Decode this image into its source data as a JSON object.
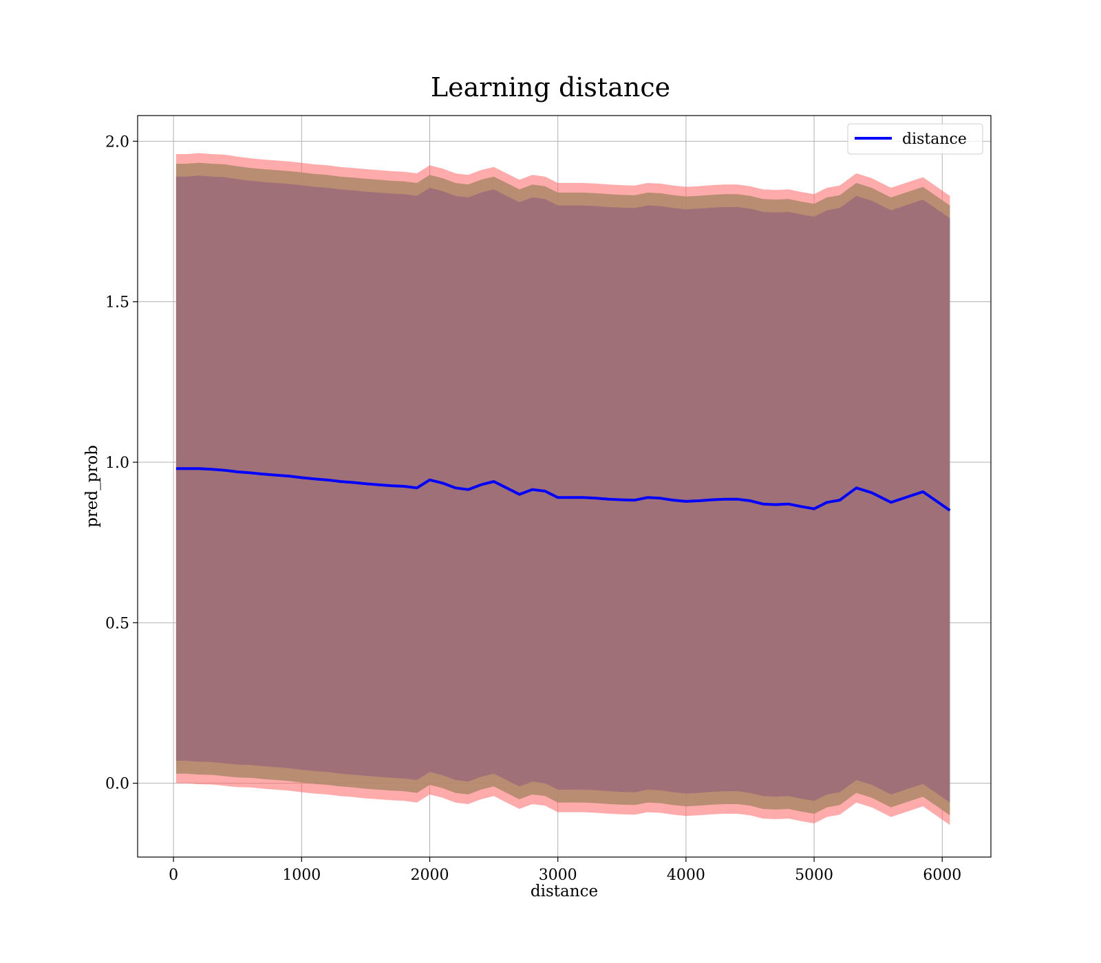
{
  "chart_data": {
    "type": "line",
    "title": "Learning distance",
    "xlabel": "distance",
    "ylabel": "pred_prob",
    "xlim": [
      -280,
      6380
    ],
    "ylim": [
      -0.23,
      2.08
    ],
    "xticks": [
      0,
      1000,
      2000,
      3000,
      4000,
      5000,
      6000
    ],
    "yticks": [
      0.0,
      0.5,
      1.0,
      1.5,
      2.0
    ],
    "grid": true,
    "legend": {
      "position": "top-right",
      "entries": [
        "distance"
      ]
    },
    "colors": {
      "line": "#0000ff",
      "band_outer": "#ff6666",
      "band_middle": "#b08a6c",
      "band_inner": "#a07078"
    },
    "series": [
      {
        "name": "distance",
        "x": [
          20,
          100,
          200,
          300,
          400,
          500,
          600,
          700,
          800,
          900,
          1000,
          1100,
          1200,
          1300,
          1400,
          1500,
          1600,
          1700,
          1800,
          1900,
          2000,
          2100,
          2200,
          2300,
          2400,
          2500,
          2600,
          2700,
          2800,
          2900,
          3000,
          3100,
          3200,
          3300,
          3400,
          3500,
          3600,
          3700,
          3800,
          3900,
          4000,
          4100,
          4200,
          4300,
          4400,
          4500,
          4600,
          4700,
          4800,
          4900,
          5000,
          5100,
          5200,
          5330,
          5450,
          5600,
          5850,
          6060
        ],
        "y": [
          0.98,
          0.98,
          0.98,
          0.978,
          0.975,
          0.97,
          0.967,
          0.963,
          0.96,
          0.957,
          0.952,
          0.948,
          0.945,
          0.94,
          0.937,
          0.933,
          0.93,
          0.927,
          0.925,
          0.92,
          0.945,
          0.935,
          0.92,
          0.915,
          0.93,
          0.94,
          0.92,
          0.9,
          0.915,
          0.91,
          0.89,
          0.89,
          0.89,
          0.888,
          0.885,
          0.883,
          0.882,
          0.89,
          0.888,
          0.882,
          0.878,
          0.88,
          0.883,
          0.885,
          0.885,
          0.88,
          0.87,
          0.868,
          0.87,
          0.862,
          0.855,
          0.875,
          0.882,
          0.92,
          0.905,
          0.875,
          0.908,
          0.85
        ],
        "band_outer_upper": [
          1.96,
          1.96,
          1.963,
          1.96,
          1.958,
          1.952,
          1.947,
          1.943,
          1.94,
          1.937,
          1.933,
          1.928,
          1.925,
          1.92,
          1.917,
          1.913,
          1.91,
          1.907,
          1.905,
          1.9,
          1.925,
          1.915,
          1.9,
          1.895,
          1.91,
          1.92,
          1.9,
          1.88,
          1.895,
          1.89,
          1.87,
          1.87,
          1.87,
          1.868,
          1.865,
          1.863,
          1.862,
          1.87,
          1.868,
          1.862,
          1.858,
          1.86,
          1.863,
          1.865,
          1.865,
          1.86,
          1.85,
          1.848,
          1.85,
          1.842,
          1.835,
          1.855,
          1.862,
          1.9,
          1.885,
          1.855,
          1.888,
          1.83
        ],
        "band_outer_lower": [
          0.0,
          0.0,
          -0.003,
          -0.004,
          -0.008,
          -0.012,
          -0.013,
          -0.017,
          -0.02,
          -0.023,
          -0.028,
          -0.032,
          -0.035,
          -0.04,
          -0.043,
          -0.047,
          -0.05,
          -0.053,
          -0.055,
          -0.06,
          -0.035,
          -0.045,
          -0.06,
          -0.065,
          -0.05,
          -0.04,
          -0.06,
          -0.08,
          -0.065,
          -0.07,
          -0.09,
          -0.09,
          -0.09,
          -0.092,
          -0.095,
          -0.097,
          -0.098,
          -0.09,
          -0.092,
          -0.098,
          -0.102,
          -0.1,
          -0.097,
          -0.095,
          -0.095,
          -0.1,
          -0.11,
          -0.112,
          -0.11,
          -0.118,
          -0.125,
          -0.105,
          -0.098,
          -0.06,
          -0.075,
          -0.105,
          -0.072,
          -0.13
        ],
        "band_middle_upper": [
          1.93,
          1.93,
          1.933,
          1.93,
          1.928,
          1.922,
          1.917,
          1.913,
          1.91,
          1.907,
          1.903,
          1.898,
          1.895,
          1.89,
          1.887,
          1.883,
          1.88,
          1.877,
          1.875,
          1.87,
          1.895,
          1.885,
          1.87,
          1.865,
          1.88,
          1.89,
          1.87,
          1.85,
          1.865,
          1.86,
          1.84,
          1.84,
          1.84,
          1.838,
          1.835,
          1.833,
          1.832,
          1.84,
          1.838,
          1.832,
          1.828,
          1.83,
          1.833,
          1.835,
          1.835,
          1.83,
          1.82,
          1.818,
          1.82,
          1.812,
          1.805,
          1.825,
          1.832,
          1.87,
          1.855,
          1.825,
          1.858,
          1.8
        ],
        "band_middle_lower": [
          0.03,
          0.03,
          0.027,
          0.026,
          0.022,
          0.018,
          0.017,
          0.013,
          0.01,
          0.007,
          0.002,
          -0.002,
          -0.005,
          -0.01,
          -0.013,
          -0.017,
          -0.02,
          -0.023,
          -0.025,
          -0.03,
          -0.005,
          -0.015,
          -0.03,
          -0.035,
          -0.02,
          -0.01,
          -0.03,
          -0.05,
          -0.035,
          -0.04,
          -0.06,
          -0.06,
          -0.06,
          -0.062,
          -0.065,
          -0.067,
          -0.068,
          -0.06,
          -0.062,
          -0.068,
          -0.072,
          -0.07,
          -0.067,
          -0.065,
          -0.065,
          -0.07,
          -0.08,
          -0.082,
          -0.08,
          -0.088,
          -0.095,
          -0.075,
          -0.068,
          -0.03,
          -0.045,
          -0.075,
          -0.042,
          -0.1
        ],
        "band_inner_upper": [
          1.89,
          1.89,
          1.893,
          1.89,
          1.888,
          1.882,
          1.877,
          1.873,
          1.87,
          1.867,
          1.863,
          1.858,
          1.855,
          1.85,
          1.847,
          1.843,
          1.84,
          1.837,
          1.835,
          1.83,
          1.855,
          1.845,
          1.83,
          1.825,
          1.84,
          1.85,
          1.83,
          1.81,
          1.825,
          1.82,
          1.8,
          1.8,
          1.8,
          1.798,
          1.795,
          1.793,
          1.792,
          1.8,
          1.798,
          1.792,
          1.788,
          1.79,
          1.793,
          1.795,
          1.795,
          1.79,
          1.78,
          1.778,
          1.78,
          1.772,
          1.765,
          1.785,
          1.792,
          1.83,
          1.815,
          1.785,
          1.818,
          1.76
        ],
        "band_inner_lower": [
          0.07,
          0.07,
          0.067,
          0.066,
          0.062,
          0.058,
          0.057,
          0.053,
          0.05,
          0.047,
          0.042,
          0.038,
          0.035,
          0.03,
          0.027,
          0.023,
          0.02,
          0.017,
          0.015,
          0.01,
          0.035,
          0.025,
          0.01,
          0.005,
          0.02,
          0.03,
          0.01,
          -0.01,
          0.005,
          0.0,
          -0.02,
          -0.02,
          -0.02,
          -0.022,
          -0.025,
          -0.027,
          -0.028,
          -0.02,
          -0.022,
          -0.028,
          -0.032,
          -0.03,
          -0.027,
          -0.025,
          -0.025,
          -0.03,
          -0.04,
          -0.042,
          -0.04,
          -0.048,
          -0.055,
          -0.035,
          -0.028,
          0.01,
          -0.005,
          -0.035,
          -0.002,
          -0.06
        ]
      }
    ]
  }
}
